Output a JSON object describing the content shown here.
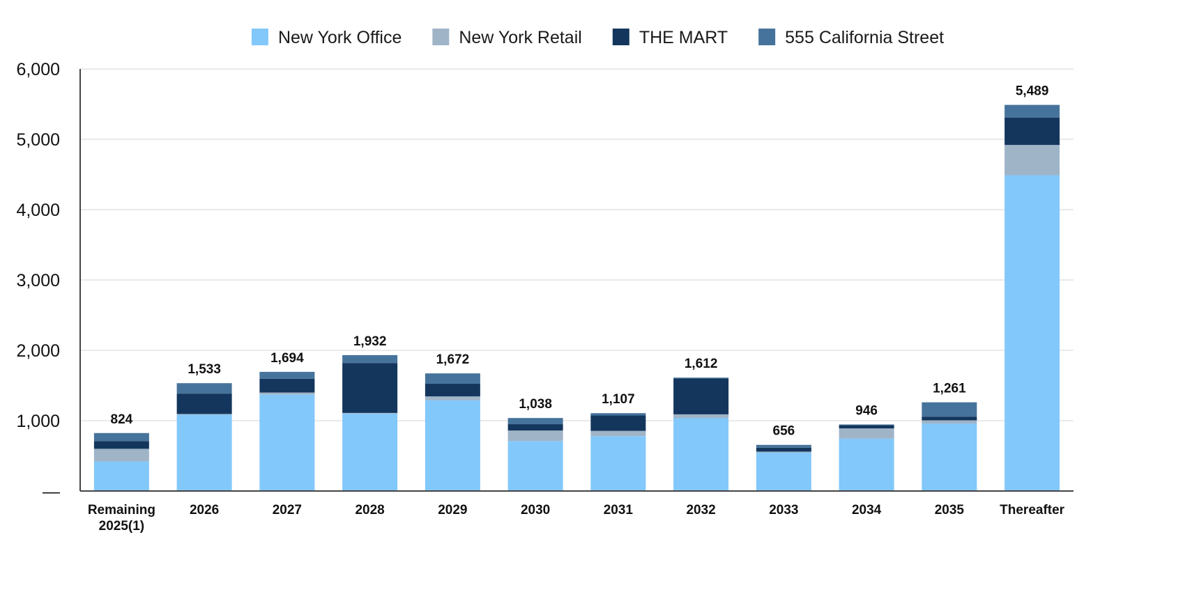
{
  "chart_data": {
    "type": "bar",
    "stacked": true,
    "title": "",
    "xlabel": "",
    "ylabel": "",
    "ylim": [
      0,
      6000
    ],
    "yticks": [
      0,
      1000,
      2000,
      3000,
      4000,
      5000,
      6000
    ],
    "ytick_labels": [
      "—",
      "1,000",
      "2,000",
      "3,000",
      "4,000",
      "5,000",
      "6,000"
    ],
    "grid": true,
    "legend_position": "top-center",
    "categories": [
      [
        "Remaining",
        "2025(1)"
      ],
      [
        "2026"
      ],
      [
        "2027"
      ],
      [
        "2028"
      ],
      [
        "2029"
      ],
      [
        "2030"
      ],
      [
        "2031"
      ],
      [
        "2032"
      ],
      [
        "2033"
      ],
      [
        "2034"
      ],
      [
        "2035"
      ],
      [
        "Thereafter"
      ]
    ],
    "series": [
      {
        "name": "New York Office",
        "color": "#82c8fb",
        "values": [
          420,
          1085,
          1370,
          1100,
          1290,
          710,
          780,
          1035,
          545,
          745,
          960,
          4490
        ]
      },
      {
        "name": "New York Retail",
        "color": "#9fb4c7",
        "values": [
          180,
          10,
          30,
          10,
          55,
          150,
          75,
          55,
          15,
          145,
          45,
          430
        ]
      },
      {
        "name": "THE MART",
        "color": "#14365d",
        "values": [
          110,
          290,
          195,
          710,
          180,
          90,
          220,
          510,
          55,
          45,
          50,
          390
        ]
      },
      {
        "name": "555 California Street",
        "color": "#46739b",
        "values": [
          114,
          148,
          99,
          112,
          147,
          88,
          32,
          12,
          41,
          11,
          206,
          179
        ]
      }
    ],
    "totals": [
      "824",
      "1,533",
      "1,694",
      "1,932",
      "1,672",
      "1,038",
      "1,107",
      "1,612",
      "656",
      "946",
      "1,261",
      "5,489"
    ],
    "total_values": [
      824,
      1533,
      1694,
      1932,
      1672,
      1038,
      1107,
      1612,
      656,
      946,
      1261,
      5489
    ]
  }
}
